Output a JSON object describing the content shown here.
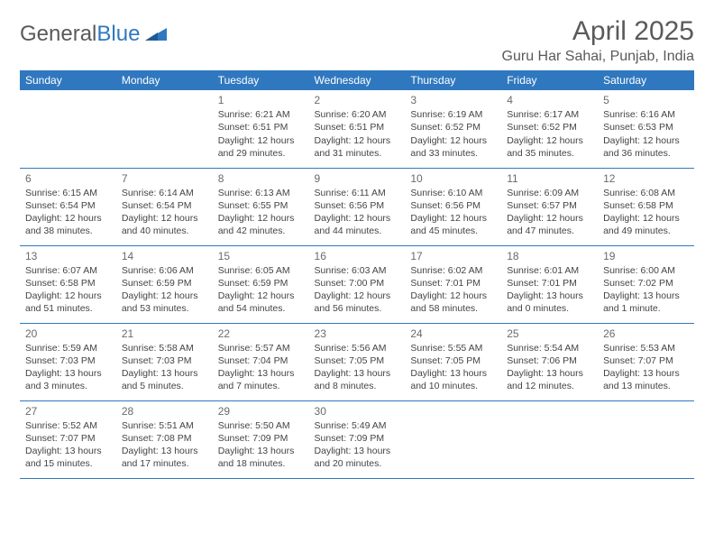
{
  "brand": {
    "part1": "General",
    "part2": "Blue"
  },
  "title": "April 2025",
  "location": "Guru Har Sahai, Punjab, India",
  "colors": {
    "header_bg": "#2f78bf",
    "header_text": "#ffffff",
    "border": "#2f78bf",
    "text": "#444444",
    "title_text": "#5a5a5a"
  },
  "weekdays": [
    "Sunday",
    "Monday",
    "Tuesday",
    "Wednesday",
    "Thursday",
    "Friday",
    "Saturday"
  ],
  "weeks": [
    [
      null,
      null,
      {
        "day": "1",
        "sunrise": "Sunrise: 6:21 AM",
        "sunset": "Sunset: 6:51 PM",
        "dayl1": "Daylight: 12 hours",
        "dayl2": "and 29 minutes."
      },
      {
        "day": "2",
        "sunrise": "Sunrise: 6:20 AM",
        "sunset": "Sunset: 6:51 PM",
        "dayl1": "Daylight: 12 hours",
        "dayl2": "and 31 minutes."
      },
      {
        "day": "3",
        "sunrise": "Sunrise: 6:19 AM",
        "sunset": "Sunset: 6:52 PM",
        "dayl1": "Daylight: 12 hours",
        "dayl2": "and 33 minutes."
      },
      {
        "day": "4",
        "sunrise": "Sunrise: 6:17 AM",
        "sunset": "Sunset: 6:52 PM",
        "dayl1": "Daylight: 12 hours",
        "dayl2": "and 35 minutes."
      },
      {
        "day": "5",
        "sunrise": "Sunrise: 6:16 AM",
        "sunset": "Sunset: 6:53 PM",
        "dayl1": "Daylight: 12 hours",
        "dayl2": "and 36 minutes."
      }
    ],
    [
      {
        "day": "6",
        "sunrise": "Sunrise: 6:15 AM",
        "sunset": "Sunset: 6:54 PM",
        "dayl1": "Daylight: 12 hours",
        "dayl2": "and 38 minutes."
      },
      {
        "day": "7",
        "sunrise": "Sunrise: 6:14 AM",
        "sunset": "Sunset: 6:54 PM",
        "dayl1": "Daylight: 12 hours",
        "dayl2": "and 40 minutes."
      },
      {
        "day": "8",
        "sunrise": "Sunrise: 6:13 AM",
        "sunset": "Sunset: 6:55 PM",
        "dayl1": "Daylight: 12 hours",
        "dayl2": "and 42 minutes."
      },
      {
        "day": "9",
        "sunrise": "Sunrise: 6:11 AM",
        "sunset": "Sunset: 6:56 PM",
        "dayl1": "Daylight: 12 hours",
        "dayl2": "and 44 minutes."
      },
      {
        "day": "10",
        "sunrise": "Sunrise: 6:10 AM",
        "sunset": "Sunset: 6:56 PM",
        "dayl1": "Daylight: 12 hours",
        "dayl2": "and 45 minutes."
      },
      {
        "day": "11",
        "sunrise": "Sunrise: 6:09 AM",
        "sunset": "Sunset: 6:57 PM",
        "dayl1": "Daylight: 12 hours",
        "dayl2": "and 47 minutes."
      },
      {
        "day": "12",
        "sunrise": "Sunrise: 6:08 AM",
        "sunset": "Sunset: 6:58 PM",
        "dayl1": "Daylight: 12 hours",
        "dayl2": "and 49 minutes."
      }
    ],
    [
      {
        "day": "13",
        "sunrise": "Sunrise: 6:07 AM",
        "sunset": "Sunset: 6:58 PM",
        "dayl1": "Daylight: 12 hours",
        "dayl2": "and 51 minutes."
      },
      {
        "day": "14",
        "sunrise": "Sunrise: 6:06 AM",
        "sunset": "Sunset: 6:59 PM",
        "dayl1": "Daylight: 12 hours",
        "dayl2": "and 53 minutes."
      },
      {
        "day": "15",
        "sunrise": "Sunrise: 6:05 AM",
        "sunset": "Sunset: 6:59 PM",
        "dayl1": "Daylight: 12 hours",
        "dayl2": "and 54 minutes."
      },
      {
        "day": "16",
        "sunrise": "Sunrise: 6:03 AM",
        "sunset": "Sunset: 7:00 PM",
        "dayl1": "Daylight: 12 hours",
        "dayl2": "and 56 minutes."
      },
      {
        "day": "17",
        "sunrise": "Sunrise: 6:02 AM",
        "sunset": "Sunset: 7:01 PM",
        "dayl1": "Daylight: 12 hours",
        "dayl2": "and 58 minutes."
      },
      {
        "day": "18",
        "sunrise": "Sunrise: 6:01 AM",
        "sunset": "Sunset: 7:01 PM",
        "dayl1": "Daylight: 13 hours",
        "dayl2": "and 0 minutes."
      },
      {
        "day": "19",
        "sunrise": "Sunrise: 6:00 AM",
        "sunset": "Sunset: 7:02 PM",
        "dayl1": "Daylight: 13 hours",
        "dayl2": "and 1 minute."
      }
    ],
    [
      {
        "day": "20",
        "sunrise": "Sunrise: 5:59 AM",
        "sunset": "Sunset: 7:03 PM",
        "dayl1": "Daylight: 13 hours",
        "dayl2": "and 3 minutes."
      },
      {
        "day": "21",
        "sunrise": "Sunrise: 5:58 AM",
        "sunset": "Sunset: 7:03 PM",
        "dayl1": "Daylight: 13 hours",
        "dayl2": "and 5 minutes."
      },
      {
        "day": "22",
        "sunrise": "Sunrise: 5:57 AM",
        "sunset": "Sunset: 7:04 PM",
        "dayl1": "Daylight: 13 hours",
        "dayl2": "and 7 minutes."
      },
      {
        "day": "23",
        "sunrise": "Sunrise: 5:56 AM",
        "sunset": "Sunset: 7:05 PM",
        "dayl1": "Daylight: 13 hours",
        "dayl2": "and 8 minutes."
      },
      {
        "day": "24",
        "sunrise": "Sunrise: 5:55 AM",
        "sunset": "Sunset: 7:05 PM",
        "dayl1": "Daylight: 13 hours",
        "dayl2": "and 10 minutes."
      },
      {
        "day": "25",
        "sunrise": "Sunrise: 5:54 AM",
        "sunset": "Sunset: 7:06 PM",
        "dayl1": "Daylight: 13 hours",
        "dayl2": "and 12 minutes."
      },
      {
        "day": "26",
        "sunrise": "Sunrise: 5:53 AM",
        "sunset": "Sunset: 7:07 PM",
        "dayl1": "Daylight: 13 hours",
        "dayl2": "and 13 minutes."
      }
    ],
    [
      {
        "day": "27",
        "sunrise": "Sunrise: 5:52 AM",
        "sunset": "Sunset: 7:07 PM",
        "dayl1": "Daylight: 13 hours",
        "dayl2": "and 15 minutes."
      },
      {
        "day": "28",
        "sunrise": "Sunrise: 5:51 AM",
        "sunset": "Sunset: 7:08 PM",
        "dayl1": "Daylight: 13 hours",
        "dayl2": "and 17 minutes."
      },
      {
        "day": "29",
        "sunrise": "Sunrise: 5:50 AM",
        "sunset": "Sunset: 7:09 PM",
        "dayl1": "Daylight: 13 hours",
        "dayl2": "and 18 minutes."
      },
      {
        "day": "30",
        "sunrise": "Sunrise: 5:49 AM",
        "sunset": "Sunset: 7:09 PM",
        "dayl1": "Daylight: 13 hours",
        "dayl2": "and 20 minutes."
      },
      null,
      null,
      null
    ]
  ]
}
